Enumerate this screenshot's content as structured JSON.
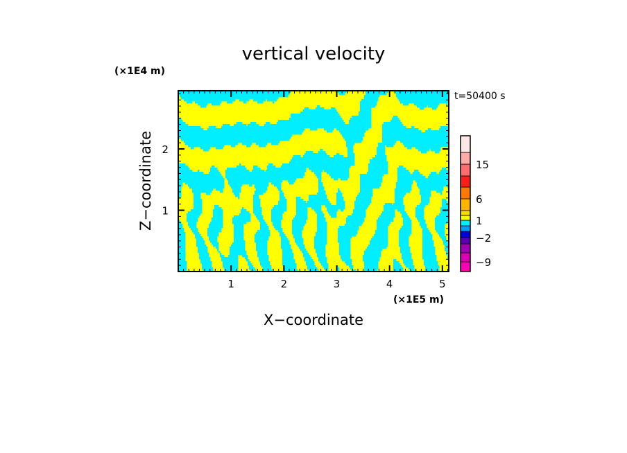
{
  "chart_data": {
    "type": "heatmap",
    "title": "vertical velocity",
    "xlabel": "X−coordinate",
    "ylabel": "Z−coordinate",
    "x_scale_label": "(×1E5 m)",
    "y_scale_label": "(×1E4 m)",
    "time_label": "t=50400 s",
    "xlim": [
      0,
      5.12
    ],
    "ylim": [
      0,
      2.95
    ],
    "x_ticks": [
      1,
      2,
      3,
      4,
      5
    ],
    "y_ticks": [
      1,
      2
    ],
    "x_tick_labels": [
      "1",
      "2",
      "3",
      "4",
      "5"
    ],
    "y_tick_labels": [
      "1",
      "2"
    ],
    "field_colors": {
      "positive": "#ffff00",
      "negative": "#00eeff"
    },
    "colorbar": {
      "min": -12,
      "max": 24,
      "levels": [
        -12,
        -9,
        -6,
        -3,
        -2,
        -1,
        0,
        1,
        2,
        3,
        6,
        9,
        12,
        15,
        18,
        24
      ],
      "colors": [
        "#ff00b4",
        "#dc00b4",
        "#a000b4",
        "#5a00b4",
        "#0000dc",
        "#00a0ff",
        "#00eeff",
        "#ffff00",
        "#f5dc00",
        "#ffb400",
        "#ff7800",
        "#ff1e1e",
        "#ff6e6e",
        "#ffaaaa",
        "#ffe6e6"
      ],
      "tick_values": [
        15,
        6,
        1,
        -2,
        -9
      ],
      "tick_labels": [
        "15",
        "6",
        "1",
        "−2",
        "−9"
      ]
    }
  }
}
